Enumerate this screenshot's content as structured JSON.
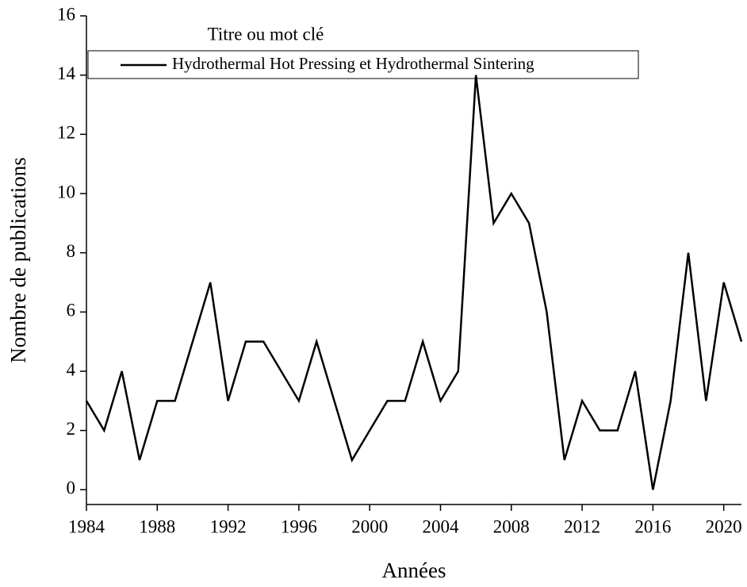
{
  "chart_data": {
    "type": "line",
    "xlabel": "Années",
    "ylabel": "Nombre de publications",
    "legend_title": "Titre ou mot clé",
    "x": [
      1984,
      1985,
      1986,
      1987,
      1988,
      1989,
      1990,
      1991,
      1992,
      1993,
      1994,
      1995,
      1996,
      1997,
      1998,
      1999,
      2000,
      2001,
      2002,
      2003,
      2004,
      2005,
      2006,
      2007,
      2008,
      2009,
      2010,
      2011,
      2012,
      2013,
      2014,
      2015,
      2016,
      2017,
      2018,
      2019,
      2020,
      2021
    ],
    "series": [
      {
        "name": "Hydrothermal Hot Pressing et Hydrothermal Sintering",
        "color": "#000000",
        "values": [
          3,
          2,
          4,
          1,
          3,
          3,
          5,
          7,
          3,
          5,
          5,
          4,
          3,
          5,
          3,
          1,
          2,
          3,
          3,
          5,
          3,
          4,
          14,
          9,
          10,
          9,
          6,
          1,
          3,
          2,
          2,
          4,
          0,
          3,
          8,
          3,
          7,
          5
        ]
      }
    ],
    "xlim": [
      1984,
      2021
    ],
    "xticks": [
      1984,
      1988,
      1992,
      1996,
      2000,
      2004,
      2008,
      2012,
      2016,
      2020
    ],
    "ylim": [
      -0.5,
      16
    ],
    "yticks": [
      0,
      2,
      4,
      6,
      8,
      10,
      12,
      14,
      16
    ]
  }
}
